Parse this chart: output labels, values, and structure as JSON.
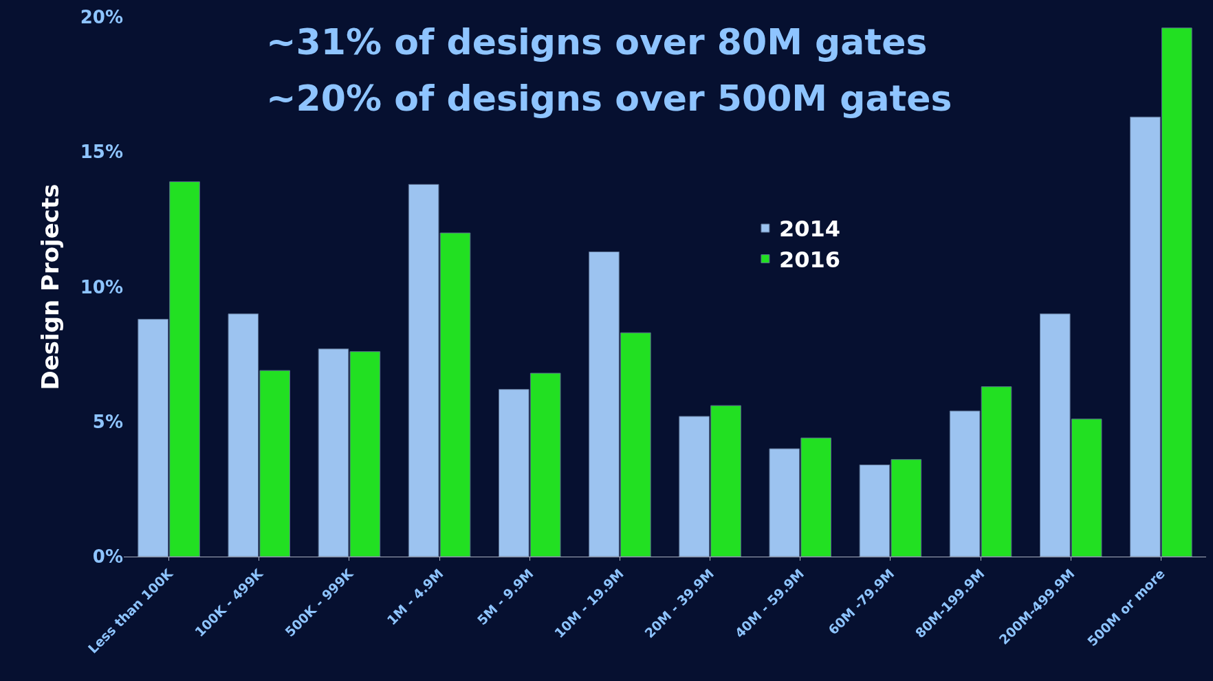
{
  "chart_data": {
    "type": "bar",
    "ylabel": "Design Projects",
    "annotations": [
      "~31% of designs over 80M gates",
      "~20% of designs over 500M gates"
    ],
    "categories": [
      "Less than 100K",
      "100K - 499K",
      "500K - 999K",
      "1M - 4.9M",
      "5M - 9.9M",
      "10M - 19.9M",
      "20M - 39.9M",
      "40M - 59.9M",
      "60M -79.9M",
      "80M-199.9M",
      "200M-499.9M",
      "500M or more"
    ],
    "series": [
      {
        "name": "2014",
        "color": "#9cc3f0",
        "values": [
          8.8,
          9.0,
          7.7,
          13.8,
          6.2,
          11.3,
          5.2,
          4.0,
          3.4,
          5.4,
          9.0,
          16.3
        ]
      },
      {
        "name": "2016",
        "color": "#22e022",
        "values": [
          13.9,
          6.9,
          7.6,
          12.0,
          6.8,
          8.3,
          5.6,
          4.4,
          3.6,
          6.3,
          5.1,
          19.6
        ]
      }
    ],
    "ylim": [
      0,
      20
    ],
    "yticks": [
      {
        "value": 0,
        "label": "0%"
      },
      {
        "value": 5,
        "label": "5%"
      },
      {
        "value": 10,
        "label": "10%"
      },
      {
        "value": 15,
        "label": "15%"
      },
      {
        "value": 20,
        "label": "20%"
      }
    ],
    "grid": false,
    "legend": "right"
  }
}
